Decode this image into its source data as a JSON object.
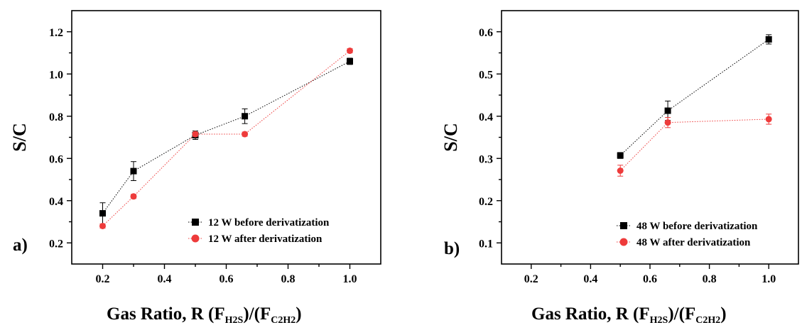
{
  "chart_data": [
    {
      "type": "scatter",
      "panel_label": "a)",
      "ylabel": "S/C",
      "xlabel": {
        "main": "Gas Ratio, R (F",
        "sub1": "H2S",
        "mid": ")/(F",
        "sub2": "C2H2",
        "end": ")"
      },
      "xlim": [
        0.1,
        1.1
      ],
      "ylim": [
        0.1,
        1.3
      ],
      "x_ticks": [
        0.2,
        0.4,
        0.6,
        0.8,
        1.0
      ],
      "y_ticks": [
        0.2,
        0.4,
        0.6,
        0.8,
        1.0,
        1.2
      ],
      "x_tick_labels": [
        "0.2",
        "0.4",
        "0.6",
        "0.8",
        "1.0"
      ],
      "y_tick_labels": [
        "0.2",
        "0.4",
        "0.6",
        "0.8",
        "1.0",
        "1.2"
      ],
      "legend_position": "bottom-right",
      "series": [
        {
          "name": "12 W before derivatization",
          "marker": "square",
          "color": "#000000",
          "x": [
            0.2,
            0.3,
            0.5,
            0.66,
            1.0
          ],
          "y": [
            0.34,
            0.54,
            0.71,
            0.8,
            1.06
          ],
          "err": [
            0.05,
            0.045,
            0.02,
            0.035,
            0.015
          ]
        },
        {
          "name": "12 W after derivatization",
          "marker": "circle",
          "color": "#ee3b3b",
          "x": [
            0.2,
            0.3,
            0.5,
            0.66,
            1.0
          ],
          "y": [
            0.28,
            0.42,
            0.715,
            0.715,
            1.11
          ],
          "err": [
            0.01,
            0.01,
            0.01,
            0.01,
            0.01
          ]
        }
      ]
    },
    {
      "type": "scatter",
      "panel_label": "b)",
      "ylabel": "S/C",
      "xlabel": {
        "main": "Gas Ratio, R (F",
        "sub1": "H2S",
        "mid": ")/(F",
        "sub2": "C2H2",
        "end": ")"
      },
      "xlim": [
        0.1,
        1.1
      ],
      "ylim": [
        0.05,
        0.65
      ],
      "x_ticks": [
        0.2,
        0.4,
        0.6,
        0.8,
        1.0
      ],
      "y_ticks": [
        0.1,
        0.2,
        0.3,
        0.4,
        0.5,
        0.6
      ],
      "x_tick_labels": [
        "0.2",
        "0.4",
        "0.6",
        "0.8",
        "1.0"
      ],
      "y_tick_labels": [
        "0.1",
        "0.2",
        "0.3",
        "0.4",
        "0.5",
        "0.6"
      ],
      "legend_position": "bottom-right",
      "series": [
        {
          "name": "48 W before derivatization",
          "marker": "square",
          "color": "#000000",
          "x": [
            0.5,
            0.66,
            1.0
          ],
          "y": [
            0.307,
            0.413,
            0.582
          ],
          "err": [
            0.007,
            0.023,
            0.011
          ]
        },
        {
          "name": "48 W after derivatization",
          "marker": "circle",
          "color": "#ee3b3b",
          "x": [
            0.5,
            0.66,
            1.0
          ],
          "y": [
            0.271,
            0.385,
            0.393
          ],
          "err": [
            0.013,
            0.012,
            0.012
          ]
        }
      ]
    }
  ]
}
